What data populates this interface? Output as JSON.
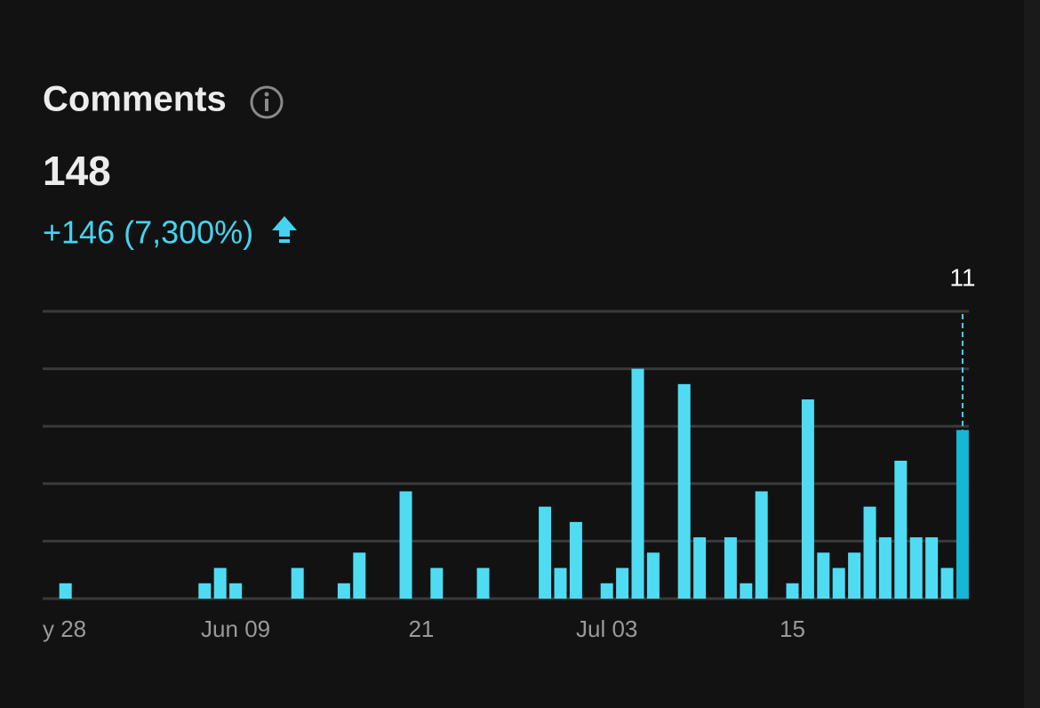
{
  "header": {
    "title": "Comments",
    "total": "148",
    "change": "+146 (7,300%)"
  },
  "chart_data": {
    "type": "bar",
    "categories": [
      "y 28",
      null,
      null,
      null,
      null,
      null,
      null,
      null,
      null,
      null,
      null,
      null,
      "Jun 09",
      null,
      null,
      null,
      null,
      null,
      null,
      null,
      null,
      null,
      null,
      null,
      "21",
      null,
      null,
      null,
      null,
      null,
      null,
      null,
      null,
      null,
      null,
      null,
      "Jul 03",
      null,
      null,
      null,
      null,
      null,
      null,
      null,
      null,
      null,
      null,
      null,
      "15",
      null,
      null,
      null,
      null,
      null,
      null,
      null,
      null,
      null,
      null
    ],
    "values": [
      1,
      0,
      0,
      0,
      0,
      0,
      0,
      0,
      0,
      1,
      2,
      1,
      0,
      0,
      0,
      2,
      0,
      0,
      1,
      3,
      0,
      0,
      7,
      0,
      2,
      0,
      0,
      2,
      0,
      0,
      0,
      6,
      2,
      5,
      0,
      1,
      2,
      15,
      3,
      0,
      14,
      4,
      0,
      4,
      1,
      7,
      0,
      1,
      13,
      3,
      2,
      3,
      6,
      4,
      9,
      4,
      4,
      2,
      11
    ],
    "color": "#4fdcf2",
    "highlight_color": "#14b8d4",
    "highlight_index": 58,
    "ylim": [
      0,
      18.75
    ],
    "yticks": [
      0,
      3.75,
      7.5,
      11.25,
      15,
      18.75
    ],
    "grid": true
  }
}
